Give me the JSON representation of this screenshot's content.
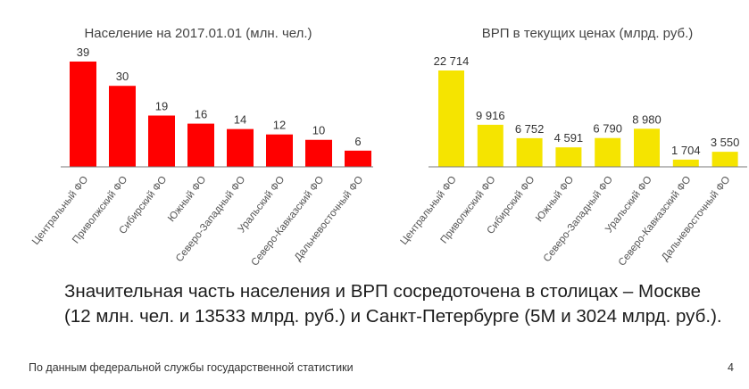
{
  "chart_data": [
    {
      "type": "bar",
      "title": "Население на 2017.01.01 (млн. чел.)",
      "categories": [
        "Центральный ФО",
        "Приволжский ФО",
        "Сибирский ФО",
        "Южный ФО",
        "Северо-Западный ФО",
        "Уральский ФО",
        "Северо-Кавказский ФО",
        "Дальневосточный ФО"
      ],
      "values": [
        39,
        30,
        19,
        16,
        14,
        12,
        10,
        6
      ],
      "value_labels": [
        "39",
        "30",
        "19",
        "16",
        "14",
        "12",
        "10",
        "6"
      ],
      "color": "#ff0000",
      "xlabel": "",
      "ylabel": "",
      "ylim": [
        0,
        39
      ],
      "grid": false
    },
    {
      "type": "bar",
      "title": "ВРП в текущих ценах (млрд. руб.)",
      "categories": [
        "Центральный ФО",
        "Приволжский ФО",
        "Сибирский ФО",
        "Южный ФО",
        "Северо-Западный ФО",
        "Уральский ФО",
        "Северо-Кавказский ФО",
        "Дальневосточный ФО"
      ],
      "values": [
        22714,
        9916,
        6752,
        4591,
        6790,
        8980,
        1704,
        3550
      ],
      "value_labels": [
        "22 714",
        "9 916",
        "6 752",
        "4 591",
        "6 790",
        "8 980",
        "1 704",
        "3 550"
      ],
      "color": "#f5e400",
      "xlabel": "",
      "ylabel": "",
      "ylim": [
        0,
        22714
      ],
      "grid": false
    }
  ],
  "summary": {
    "text": "Значительная часть населения и ВРП сосредоточена в столицах – Москве (12 млн. чел. и 13533 млрд. руб.) и Санкт-Петербурге (5М и 3024 млрд. руб.)."
  },
  "footer": {
    "source": "По данным федеральной службы государственной статистики",
    "page_number": "4"
  }
}
